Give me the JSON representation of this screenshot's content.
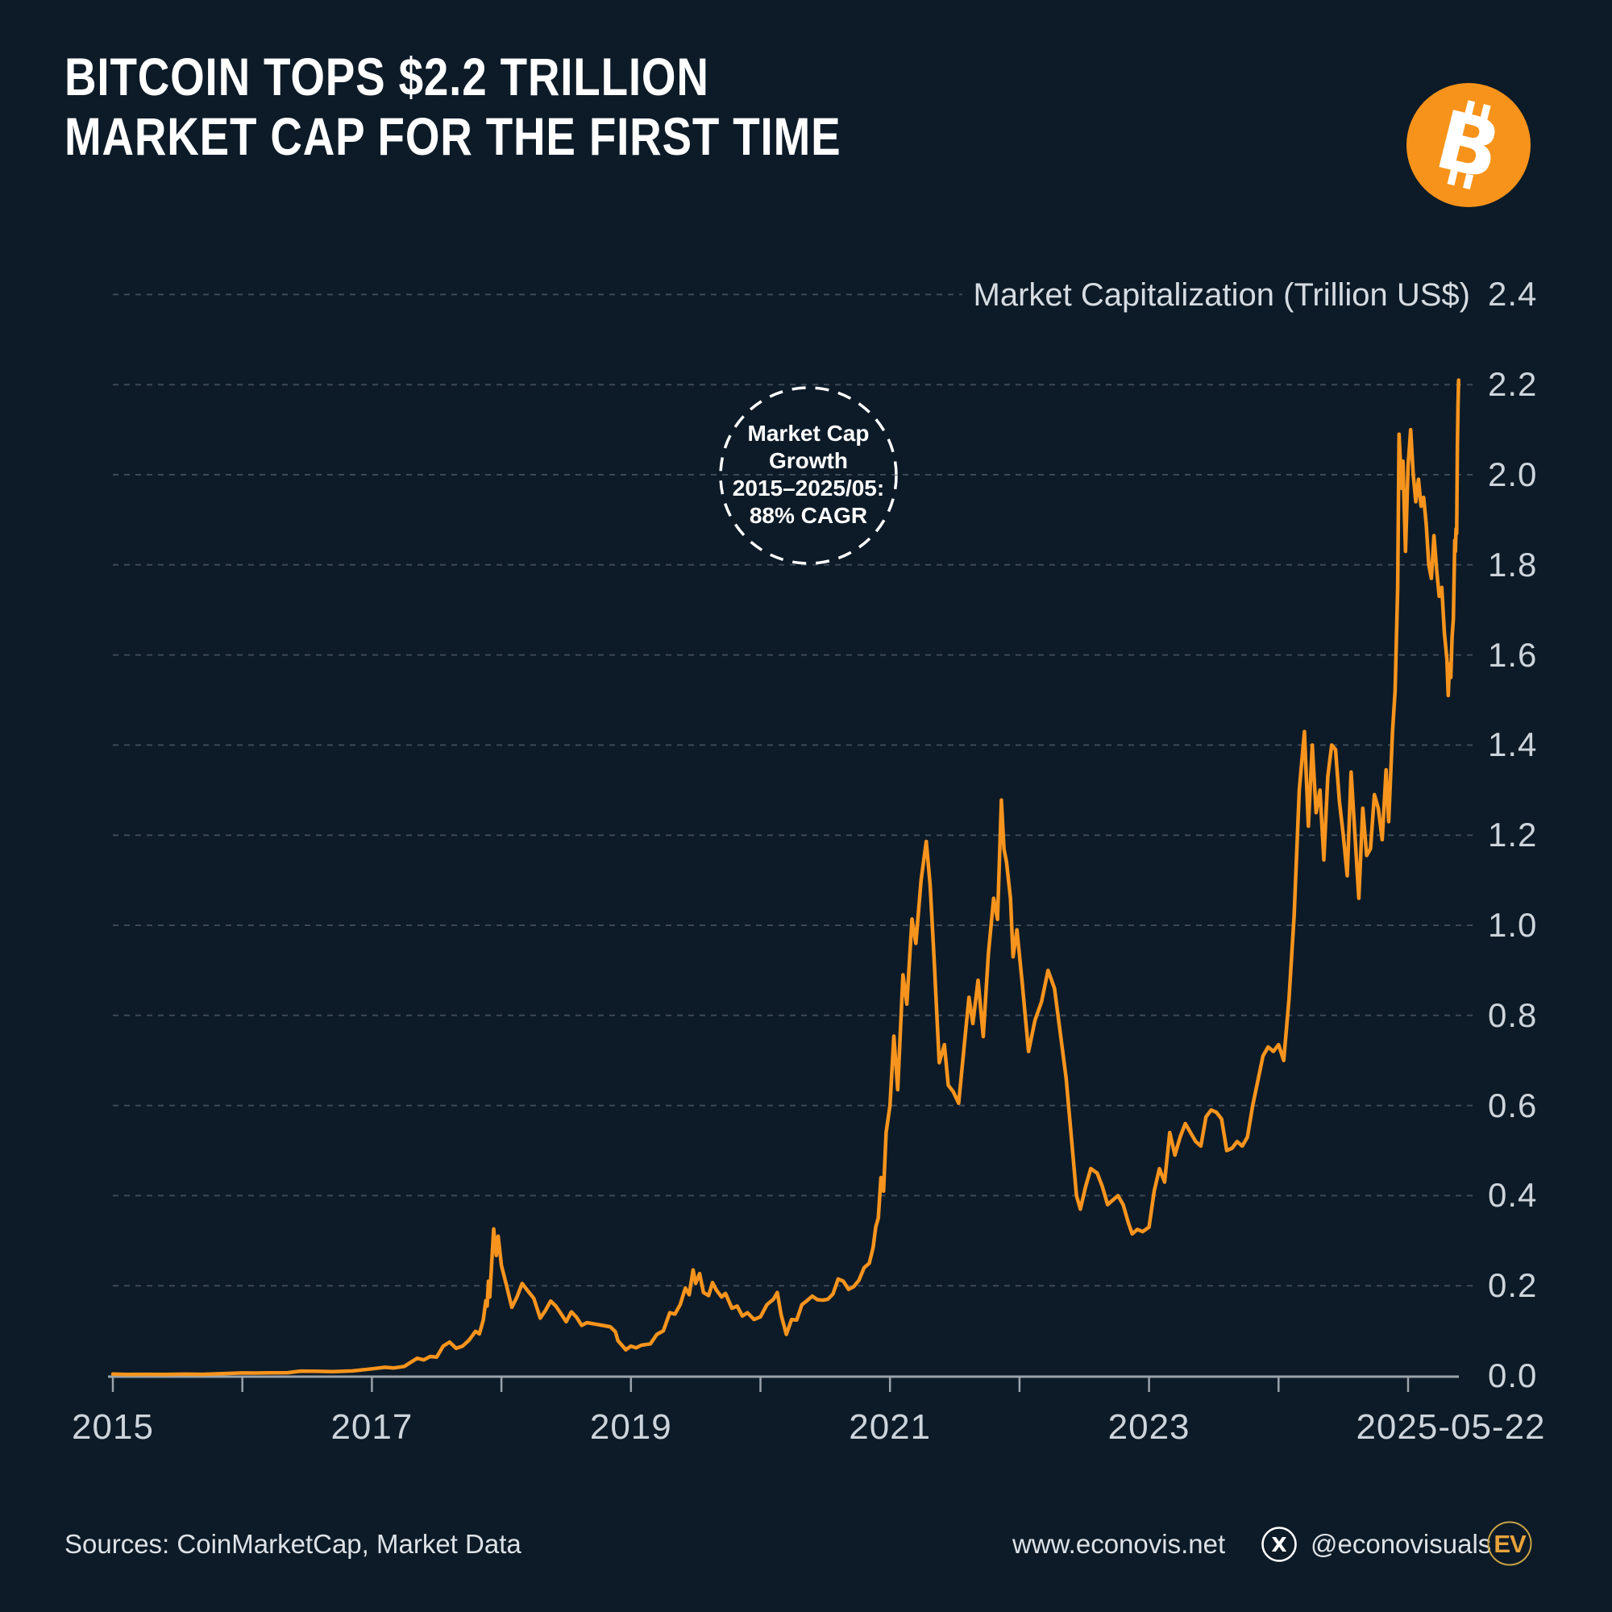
{
  "header": {
    "title_line1": "BITCOIN TOPS $2.2 TRILLION",
    "title_line2": "MARKET CAP FOR THE FIRST TIME"
  },
  "branding": {
    "bitcoin_icon": "bitcoin-icon",
    "bitcoin_letter": "B"
  },
  "chart_data": {
    "type": "line",
    "title": "Bitcoin market capitalization 2015 to 2025-05-22",
    "axis_title": "Market Capitalization (Trillion US$)",
    "ylim": [
      0,
      2.4
    ],
    "xlim": [
      2015,
      2025.39
    ],
    "grid": "dashed-horizontal",
    "legend_position": "none",
    "y_tick_labels": [
      "0.0",
      "0.2",
      "0.4",
      "0.6",
      "0.8",
      "1.0",
      "1.2",
      "1.4",
      "1.6",
      "1.8",
      "2.0",
      "2.2",
      "2.4"
    ],
    "x_ticks": [
      {
        "label": "2015",
        "year": 2015
      },
      {
        "label": "2017",
        "year": 2017
      },
      {
        "label": "2019",
        "year": 2019
      },
      {
        "label": "2021",
        "year": 2021
      },
      {
        "label": "2023",
        "year": 2023
      },
      {
        "label": "2025-05-22",
        "year": 2025.39
      }
    ],
    "x_minor_tick_years": [
      2015,
      2016,
      2017,
      2018,
      2019,
      2020,
      2021,
      2022,
      2023,
      2024,
      2025
    ],
    "annotation": {
      "lines": [
        "Market Cap",
        "Growth",
        "2015–2025/05:",
        "88% CAGR"
      ]
    },
    "series": [
      {
        "name": "Bitcoin Market Capitalization (Trillion US$)",
        "color": "#F7941D",
        "points": [
          [
            2015.0,
            0.004
          ],
          [
            2015.1,
            0.0033
          ],
          [
            2015.25,
            0.0034
          ],
          [
            2015.4,
            0.0033
          ],
          [
            2015.55,
            0.0037
          ],
          [
            2015.7,
            0.0034
          ],
          [
            2015.85,
            0.005
          ],
          [
            2016.0,
            0.0065
          ],
          [
            2016.1,
            0.0062
          ],
          [
            2016.2,
            0.0066
          ],
          [
            2016.35,
            0.007
          ],
          [
            2016.45,
            0.0105
          ],
          [
            2016.55,
            0.0102
          ],
          [
            2016.7,
            0.0095
          ],
          [
            2016.85,
            0.011
          ],
          [
            2017.0,
            0.0155
          ],
          [
            2017.1,
            0.019
          ],
          [
            2017.17,
            0.0175
          ],
          [
            2017.25,
            0.021
          ],
          [
            2017.3,
            0.03
          ],
          [
            2017.35,
            0.039
          ],
          [
            2017.4,
            0.0355
          ],
          [
            2017.45,
            0.043
          ],
          [
            2017.5,
            0.0415
          ],
          [
            2017.55,
            0.066
          ],
          [
            2017.6,
            0.075
          ],
          [
            2017.65,
            0.061
          ],
          [
            2017.7,
            0.066
          ],
          [
            2017.75,
            0.079
          ],
          [
            2017.8,
            0.099
          ],
          [
            2017.83,
            0.093
          ],
          [
            2017.86,
            0.124
          ],
          [
            2017.88,
            0.167
          ],
          [
            2017.89,
            0.155
          ],
          [
            2017.9,
            0.21
          ],
          [
            2017.91,
            0.175
          ],
          [
            2017.94,
            0.326
          ],
          [
            2017.96,
            0.267
          ],
          [
            2017.975,
            0.31
          ],
          [
            2018.0,
            0.245
          ],
          [
            2018.04,
            0.2
          ],
          [
            2018.08,
            0.152
          ],
          [
            2018.12,
            0.175
          ],
          [
            2018.16,
            0.205
          ],
          [
            2018.2,
            0.19
          ],
          [
            2018.25,
            0.172
          ],
          [
            2018.3,
            0.128
          ],
          [
            2018.34,
            0.145
          ],
          [
            2018.38,
            0.166
          ],
          [
            2018.42,
            0.155
          ],
          [
            2018.46,
            0.138
          ],
          [
            2018.5,
            0.12
          ],
          [
            2018.54,
            0.142
          ],
          [
            2018.58,
            0.13
          ],
          [
            2018.62,
            0.112
          ],
          [
            2018.66,
            0.118
          ],
          [
            2018.72,
            0.115
          ],
          [
            2018.78,
            0.112
          ],
          [
            2018.84,
            0.109
          ],
          [
            2018.88,
            0.098
          ],
          [
            2018.9,
            0.078
          ],
          [
            2018.93,
            0.068
          ],
          [
            2018.96,
            0.058
          ],
          [
            2019.0,
            0.066
          ],
          [
            2019.04,
            0.062
          ],
          [
            2019.08,
            0.068
          ],
          [
            2019.15,
            0.071
          ],
          [
            2019.2,
            0.092
          ],
          [
            2019.25,
            0.1
          ],
          [
            2019.3,
            0.14
          ],
          [
            2019.34,
            0.137
          ],
          [
            2019.38,
            0.158
          ],
          [
            2019.42,
            0.195
          ],
          [
            2019.45,
            0.18
          ],
          [
            2019.48,
            0.235
          ],
          [
            2019.5,
            0.205
          ],
          [
            2019.53,
            0.227
          ],
          [
            2019.56,
            0.185
          ],
          [
            2019.6,
            0.178
          ],
          [
            2019.63,
            0.207
          ],
          [
            2019.66,
            0.19
          ],
          [
            2019.7,
            0.175
          ],
          [
            2019.73,
            0.183
          ],
          [
            2019.78,
            0.15
          ],
          [
            2019.82,
            0.155
          ],
          [
            2019.86,
            0.133
          ],
          [
            2019.9,
            0.14
          ],
          [
            2019.95,
            0.125
          ],
          [
            2020.0,
            0.131
          ],
          [
            2020.05,
            0.158
          ],
          [
            2020.1,
            0.17
          ],
          [
            2020.13,
            0.185
          ],
          [
            2020.16,
            0.135
          ],
          [
            2020.2,
            0.092
          ],
          [
            2020.24,
            0.125
          ],
          [
            2020.28,
            0.124
          ],
          [
            2020.32,
            0.158
          ],
          [
            2020.36,
            0.167
          ],
          [
            2020.4,
            0.177
          ],
          [
            2020.44,
            0.169
          ],
          [
            2020.48,
            0.168
          ],
          [
            2020.52,
            0.17
          ],
          [
            2020.56,
            0.182
          ],
          [
            2020.6,
            0.215
          ],
          [
            2020.64,
            0.21
          ],
          [
            2020.68,
            0.192
          ],
          [
            2020.72,
            0.198
          ],
          [
            2020.76,
            0.212
          ],
          [
            2020.8,
            0.24
          ],
          [
            2020.84,
            0.25
          ],
          [
            2020.87,
            0.285
          ],
          [
            2020.89,
            0.33
          ],
          [
            2020.91,
            0.35
          ],
          [
            2020.93,
            0.44
          ],
          [
            2020.95,
            0.41
          ],
          [
            2020.97,
            0.54
          ],
          [
            2021.0,
            0.6
          ],
          [
            2021.03,
            0.754
          ],
          [
            2021.06,
            0.635
          ],
          [
            2021.1,
            0.89
          ],
          [
            2021.13,
            0.825
          ],
          [
            2021.17,
            1.014
          ],
          [
            2021.2,
            0.96
          ],
          [
            2021.24,
            1.1
          ],
          [
            2021.28,
            1.186
          ],
          [
            2021.31,
            1.09
          ],
          [
            2021.34,
            0.93
          ],
          [
            2021.38,
            0.695
          ],
          [
            2021.42,
            0.735
          ],
          [
            2021.45,
            0.645
          ],
          [
            2021.49,
            0.63
          ],
          [
            2021.53,
            0.605
          ],
          [
            2021.58,
            0.753
          ],
          [
            2021.61,
            0.84
          ],
          [
            2021.64,
            0.782
          ],
          [
            2021.68,
            0.878
          ],
          [
            2021.72,
            0.753
          ],
          [
            2021.76,
            0.937
          ],
          [
            2021.8,
            1.06
          ],
          [
            2021.83,
            1.013
          ],
          [
            2021.86,
            1.278
          ],
          [
            2021.88,
            1.17
          ],
          [
            2021.9,
            1.14
          ],
          [
            2021.93,
            1.06
          ],
          [
            2021.95,
            0.93
          ],
          [
            2021.98,
            0.99
          ],
          [
            2022.02,
            0.875
          ],
          [
            2022.07,
            0.72
          ],
          [
            2022.12,
            0.79
          ],
          [
            2022.17,
            0.83
          ],
          [
            2022.22,
            0.9
          ],
          [
            2022.27,
            0.86
          ],
          [
            2022.32,
            0.75
          ],
          [
            2022.36,
            0.66
          ],
          [
            2022.4,
            0.53
          ],
          [
            2022.44,
            0.4
          ],
          [
            2022.47,
            0.37
          ],
          [
            2022.51,
            0.42
          ],
          [
            2022.55,
            0.46
          ],
          [
            2022.6,
            0.45
          ],
          [
            2022.64,
            0.42
          ],
          [
            2022.68,
            0.38
          ],
          [
            2022.72,
            0.39
          ],
          [
            2022.76,
            0.4
          ],
          [
            2022.8,
            0.38
          ],
          [
            2022.84,
            0.34
          ],
          [
            2022.87,
            0.315
          ],
          [
            2022.91,
            0.325
          ],
          [
            2022.95,
            0.32
          ],
          [
            2023.0,
            0.33
          ],
          [
            2023.04,
            0.41
          ],
          [
            2023.08,
            0.46
          ],
          [
            2023.12,
            0.43
          ],
          [
            2023.16,
            0.54
          ],
          [
            2023.2,
            0.49
          ],
          [
            2023.24,
            0.53
          ],
          [
            2023.28,
            0.56
          ],
          [
            2023.32,
            0.54
          ],
          [
            2023.36,
            0.52
          ],
          [
            2023.4,
            0.51
          ],
          [
            2023.44,
            0.575
          ],
          [
            2023.48,
            0.59
          ],
          [
            2023.52,
            0.585
          ],
          [
            2023.56,
            0.57
          ],
          [
            2023.6,
            0.5
          ],
          [
            2023.64,
            0.505
          ],
          [
            2023.68,
            0.52
          ],
          [
            2023.72,
            0.51
          ],
          [
            2023.76,
            0.53
          ],
          [
            2023.8,
            0.6
          ],
          [
            2023.84,
            0.655
          ],
          [
            2023.88,
            0.71
          ],
          [
            2023.92,
            0.73
          ],
          [
            2023.96,
            0.72
          ],
          [
            2024.0,
            0.735
          ],
          [
            2024.04,
            0.7
          ],
          [
            2024.08,
            0.835
          ],
          [
            2024.12,
            1.02
          ],
          [
            2024.16,
            1.3
          ],
          [
            2024.2,
            1.43
          ],
          [
            2024.23,
            1.22
          ],
          [
            2024.26,
            1.4
          ],
          [
            2024.29,
            1.25
          ],
          [
            2024.32,
            1.3
          ],
          [
            2024.35,
            1.145
          ],
          [
            2024.38,
            1.33
          ],
          [
            2024.41,
            1.4
          ],
          [
            2024.44,
            1.39
          ],
          [
            2024.47,
            1.275
          ],
          [
            2024.5,
            1.2
          ],
          [
            2024.53,
            1.11
          ],
          [
            2024.56,
            1.34
          ],
          [
            2024.59,
            1.2
          ],
          [
            2024.62,
            1.06
          ],
          [
            2024.65,
            1.26
          ],
          [
            2024.68,
            1.155
          ],
          [
            2024.71,
            1.17
          ],
          [
            2024.74,
            1.29
          ],
          [
            2024.77,
            1.26
          ],
          [
            2024.8,
            1.19
          ],
          [
            2024.83,
            1.345
          ],
          [
            2024.85,
            1.23
          ],
          [
            2024.88,
            1.43
          ],
          [
            2024.9,
            1.52
          ],
          [
            2024.92,
            1.75
          ],
          [
            2024.93,
            2.09
          ],
          [
            2024.95,
            1.97
          ],
          [
            2024.96,
            2.03
          ],
          [
            2024.98,
            1.83
          ],
          [
            2025.0,
            2.02
          ],
          [
            2025.02,
            2.1
          ],
          [
            2025.04,
            2.0
          ],
          [
            2025.06,
            1.94
          ],
          [
            2025.08,
            1.99
          ],
          [
            2025.1,
            1.93
          ],
          [
            2025.12,
            1.95
          ],
          [
            2025.14,
            1.89
          ],
          [
            2025.16,
            1.8
          ],
          [
            2025.18,
            1.77
          ],
          [
            2025.2,
            1.865
          ],
          [
            2025.22,
            1.79
          ],
          [
            2025.24,
            1.73
          ],
          [
            2025.26,
            1.75
          ],
          [
            2025.28,
            1.65
          ],
          [
            2025.3,
            1.59
          ],
          [
            2025.31,
            1.51
          ],
          [
            2025.32,
            1.58
          ],
          [
            2025.33,
            1.55
          ],
          [
            2025.34,
            1.64
          ],
          [
            2025.35,
            1.68
          ],
          [
            2025.36,
            1.855
          ],
          [
            2025.365,
            1.83
          ],
          [
            2025.37,
            1.88
          ],
          [
            2025.375,
            1.87
          ],
          [
            2025.38,
            2.05
          ],
          [
            2025.385,
            2.15
          ],
          [
            2025.39,
            2.21
          ]
        ]
      }
    ]
  },
  "footer": {
    "sources": "Sources: CoinMarketCap, Market Data",
    "website": "www.econovis.net",
    "social_platform": "X",
    "social_handle": "@econovisuals",
    "logo_text": "EV"
  },
  "colors": {
    "background": "#0D1B28",
    "line_orange": "#F7941D",
    "bitcoin_orange": "#F7931A",
    "grid_gray": "#77828C",
    "axis_gray": "#9AA3AB",
    "label_gray": "#CDD4DB",
    "white": "#FFFFFF",
    "gold": "#C9A244"
  }
}
